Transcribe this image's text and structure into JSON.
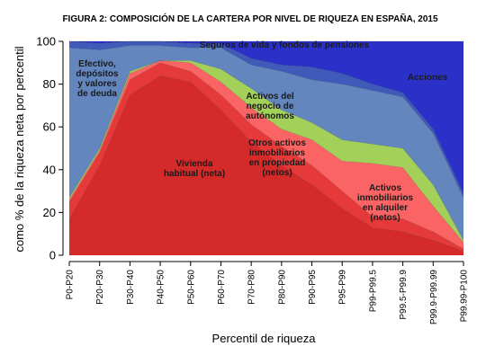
{
  "chart_data": {
    "type": "area",
    "title": "FIGURA 2: COMPOSICIÓN DE LA CARTERA POR NIVEL DE RIQUEZA EN ESPAÑA, 2015",
    "xlabel": "Percentil de riqueza",
    "ylabel": "como % de la riqueza neta por percentil",
    "ylim": [
      0,
      100
    ],
    "yticks": [
      "0",
      "20",
      "40",
      "60",
      "80",
      "100"
    ],
    "categories": [
      "P0-P20",
      "P20-P30",
      "P30-P40",
      "P40-P50",
      "P50-P60",
      "P60-P70",
      "P70-P80",
      "P80-P90",
      "P90-P95",
      "P95-P99",
      "P99-P99.5",
      "P99.5-P99.9",
      "P99.9-P99.99",
      "P99.99-P100"
    ],
    "stacked": true,
    "series": [
      {
        "name": "Vivienda habitual (neta)",
        "label": [
          "Vivienda",
          "habitual (neta)"
        ],
        "color": "#d42a2a",
        "values": [
          17,
          42,
          75,
          84,
          81,
          68,
          53,
          42,
          33,
          22,
          13,
          11,
          7,
          2
        ]
      },
      {
        "name": "Otros activos inmobiliarios en propiedad (netos)",
        "label": [
          "Otros activos",
          "inmobiliarios",
          "en propiedad",
          "(netos)"
        ],
        "color": "#e63a3a",
        "values": [
          8,
          6,
          7,
          6,
          5,
          7,
          8,
          9,
          9,
          8,
          5,
          6,
          4,
          1
        ]
      },
      {
        "name": "Activos inmobiliarios en alquiler (netos)",
        "label": [
          "Activos",
          "inmobiliarios",
          "en alquiler",
          "(netos)"
        ],
        "color": "#fb6464",
        "values": [
          1,
          1,
          3,
          1,
          4,
          6,
          8,
          8,
          12,
          14,
          25,
          24,
          12,
          3
        ]
      },
      {
        "name": "Activos del negocio de autónomos",
        "label": [
          "Activos del",
          "negocio de",
          "autónomos"
        ],
        "color": "#a2d058",
        "values": [
          1,
          1,
          1,
          0,
          1,
          6,
          9,
          9,
          8,
          10,
          9,
          9,
          10,
          1
        ]
      },
      {
        "name": "Efectivo, depósitos y valores de deuda",
        "label": [
          "Efectivo,",
          "depósitos",
          "y valores",
          "de deuda"
        ],
        "color": "#6286bd",
        "values": [
          70,
          46,
          12,
          7,
          6,
          10,
          11,
          18,
          20,
          26,
          25,
          24,
          24,
          20
        ]
      },
      {
        "name": "Seguros de vida y fondos de pensiones",
        "label": [
          "Seguros de vida y fondos de pensiones"
        ],
        "color": "#3f5ab8",
        "values": [
          3,
          3,
          2,
          2,
          2,
          2,
          3,
          3,
          6,
          5,
          3,
          2,
          2,
          2
        ]
      },
      {
        "name": "Acciones",
        "label": [
          "Acciones"
        ],
        "color": "#2b31c8",
        "values": [
          0,
          1,
          0,
          0,
          1,
          1,
          8,
          11,
          12,
          15,
          20,
          24,
          41,
          71
        ]
      }
    ]
  }
}
